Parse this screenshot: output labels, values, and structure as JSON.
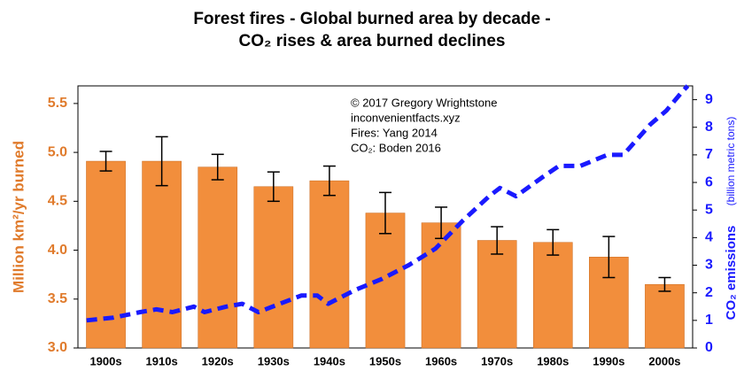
{
  "chart_data": {
    "type": "bar",
    "title": [
      "Forest fires - Global burned area by decade -",
      "CO₂ rises & area burned declines"
    ],
    "ylabel": "Million km²/yr burned",
    "y2label": "CO₂ emissions",
    "y2label_note": "(billion metric tons)",
    "annotations": [
      "© 2017 Gregory Wrightstone",
      "inconvenientfacts.xyz",
      "Fires: Yang 2014",
      "CO₂: Boden 2016"
    ],
    "categories": [
      "1900s",
      "1910s",
      "1920s",
      "1930s",
      "1940s",
      "1950s",
      "1960s",
      "1970s",
      "1980s",
      "1990s",
      "2000s"
    ],
    "ylim": [
      3,
      5.68
    ],
    "yticks": [
      {
        "value": 3,
        "label": "3.0"
      },
      3.5,
      {
        "value": 4,
        "label": "4.0"
      },
      4.5,
      {
        "value": 5,
        "label": "5.0"
      },
      5.5
    ],
    "y2lim": [
      0,
      9.5
    ],
    "y2ticks": [
      0,
      1,
      2,
      3,
      4,
      5,
      6,
      7,
      8,
      9
    ],
    "xlim": [
      1898.4,
      2012.9
    ],
    "series": [
      {
        "name": "Burned area",
        "type": "bar",
        "color": "#f28e3c",
        "values": [
          4.91,
          4.91,
          4.85,
          4.65,
          4.71,
          4.38,
          4.28,
          4.1,
          4.08,
          3.93,
          3.65
        ],
        "errors": [
          0.1,
          0.25,
          0.13,
          0.15,
          0.15,
          0.21,
          0.16,
          0.14,
          0.13,
          0.21,
          0.07
        ]
      },
      {
        "name": "CO₂ emissions",
        "type": "line",
        "axis": "y2",
        "color": "#1a1aff",
        "x": [
          1900,
          1905,
          1910,
          1913,
          1916,
          1920,
          1922,
          1926,
          1929,
          1932,
          1936,
          1940,
          1943,
          1945,
          1950,
          1955,
          1960,
          1965,
          1970,
          1975,
          1977,
          1980,
          1985,
          1988,
          1992,
          1997,
          2000,
          2005,
          2008,
          2011,
          2012
        ],
        "values": [
          1.0,
          1.1,
          1.3,
          1.4,
          1.3,
          1.5,
          1.3,
          1.5,
          1.6,
          1.3,
          1.6,
          1.9,
          1.9,
          1.6,
          2.1,
          2.5,
          3.0,
          3.6,
          4.6,
          5.5,
          5.8,
          5.5,
          6.2,
          6.6,
          6.6,
          7.0,
          7.0,
          8.1,
          8.6,
          9.3,
          9.5
        ]
      }
    ]
  }
}
